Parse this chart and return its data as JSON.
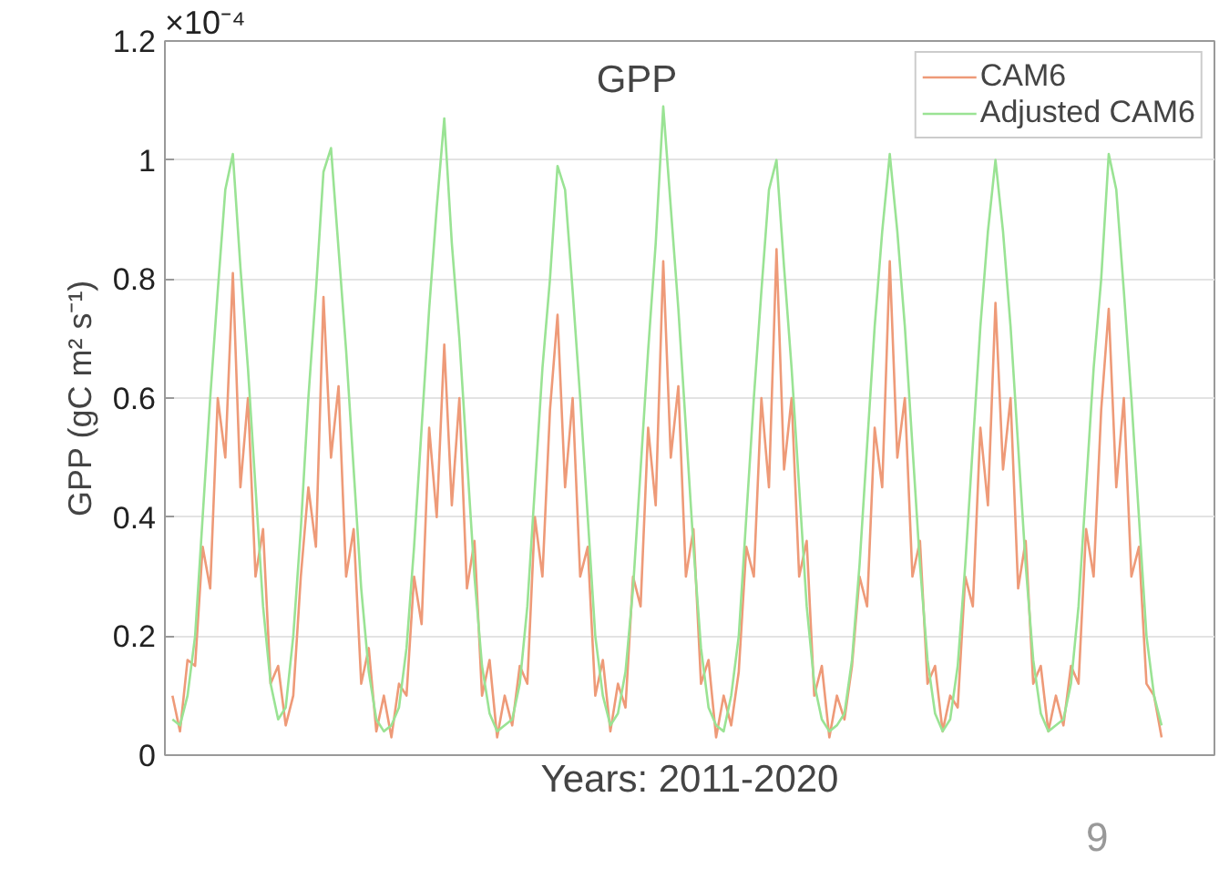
{
  "chart_data": {
    "type": "line",
    "title": "GPP",
    "xlabel": "Years: 2011-2020",
    "ylabel": "GPP (gC m² s⁻¹)",
    "annotations": [
      "×10⁻⁴",
      "9"
    ],
    "categories": [
      null,
      null,
      null,
      null,
      null,
      null,
      null,
      null,
      null,
      null,
      null,
      null,
      null,
      null,
      null,
      null,
      null,
      null,
      null,
      null,
      null,
      null,
      null,
      null,
      null,
      null,
      null,
      null,
      null,
      null,
      null,
      null,
      null,
      null,
      null,
      null,
      null,
      null,
      null,
      null,
      null,
      null,
      null,
      null,
      null,
      null,
      null,
      null,
      null,
      null,
      null,
      null,
      null,
      null,
      null,
      null,
      null,
      null,
      null,
      null,
      null,
      null,
      null,
      null,
      null,
      null,
      null,
      null,
      null,
      null,
      null,
      null,
      null,
      null,
      null,
      null,
      null,
      null,
      null,
      null,
      null,
      null,
      null,
      null,
      null,
      null,
      null,
      null,
      null,
      null,
      null,
      null,
      null,
      null,
      null,
      null,
      null,
      null,
      null,
      null,
      null,
      null,
      null,
      null,
      null,
      null,
      null,
      null,
      null,
      null,
      null,
      null,
      null,
      null,
      null,
      null,
      null,
      null,
      null,
      null,
      null,
      null,
      null,
      null,
      null,
      null,
      null,
      null,
      null,
      null,
      null,
      null
    ],
    "series": [
      {
        "name": "CAM6",
        "color": "#ee9a78",
        "values": [
          0.1,
          0.04,
          0.16,
          0.15,
          0.35,
          0.28,
          0.6,
          0.5,
          0.81,
          0.45,
          0.6,
          0.3,
          0.38,
          0.12,
          0.15,
          0.05,
          0.1,
          0.3,
          0.45,
          0.35,
          0.77,
          0.5,
          0.62,
          0.3,
          0.38,
          0.12,
          0.18,
          0.04,
          0.1,
          0.03,
          0.12,
          0.1,
          0.3,
          0.22,
          0.55,
          0.4,
          0.69,
          0.42,
          0.6,
          0.28,
          0.36,
          0.1,
          0.16,
          0.03,
          0.1,
          0.05,
          0.15,
          0.12,
          0.4,
          0.3,
          0.58,
          0.74,
          0.45,
          0.6,
          0.3,
          0.35,
          0.1,
          0.16,
          0.04,
          0.12,
          0.08,
          0.3,
          0.25,
          0.55,
          0.42,
          0.83,
          0.5,
          0.62,
          0.3,
          0.38,
          0.12,
          0.16,
          0.03,
          0.1,
          0.05,
          0.14,
          0.35,
          0.3,
          0.6,
          0.45,
          0.85,
          0.48,
          0.6,
          0.3,
          0.36,
          0.1,
          0.15,
          0.03,
          0.1,
          0.06,
          0.15,
          0.3,
          0.25,
          0.55,
          0.45,
          0.83,
          0.5,
          0.6,
          0.3,
          0.36,
          0.12,
          0.15,
          0.04,
          0.1,
          0.08,
          0.3,
          0.25,
          0.55,
          0.42,
          0.76,
          0.48,
          0.6,
          0.28,
          0.36,
          0.12,
          0.15,
          0.04,
          0.1,
          0.05,
          0.15,
          0.12,
          0.38,
          0.3,
          0.58,
          0.75,
          0.45,
          0.6,
          0.3,
          0.35,
          0.12,
          0.1,
          0.03
        ]
      },
      {
        "name": "Adjusted CAM6",
        "color": "#9ae394",
        "values": [
          0.06,
          0.05,
          0.1,
          0.2,
          0.4,
          0.6,
          0.78,
          0.95,
          1.01,
          0.82,
          0.65,
          0.45,
          0.25,
          0.12,
          0.06,
          0.08,
          0.2,
          0.38,
          0.6,
          0.78,
          0.98,
          1.02,
          0.85,
          0.68,
          0.48,
          0.28,
          0.14,
          0.06,
          0.04,
          0.05,
          0.08,
          0.18,
          0.35,
          0.55,
          0.75,
          0.92,
          1.07,
          0.86,
          0.7,
          0.5,
          0.3,
          0.15,
          0.07,
          0.04,
          0.05,
          0.06,
          0.12,
          0.25,
          0.45,
          0.65,
          0.8,
          0.99,
          0.95,
          0.78,
          0.6,
          0.4,
          0.2,
          0.1,
          0.05,
          0.07,
          0.14,
          0.28,
          0.48,
          0.68,
          0.86,
          1.09,
          0.92,
          0.75,
          0.55,
          0.35,
          0.18,
          0.08,
          0.05,
          0.04,
          0.1,
          0.2,
          0.4,
          0.6,
          0.78,
          0.95,
          1.0,
          0.82,
          0.65,
          0.45,
          0.25,
          0.12,
          0.06,
          0.04,
          0.05,
          0.07,
          0.16,
          0.32,
          0.52,
          0.72,
          0.88,
          1.01,
          0.88,
          0.72,
          0.52,
          0.32,
          0.16,
          0.07,
          0.04,
          0.06,
          0.15,
          0.32,
          0.52,
          0.72,
          0.88,
          1.0,
          0.88,
          0.72,
          0.52,
          0.32,
          0.16,
          0.07,
          0.04,
          0.05,
          0.06,
          0.12,
          0.25,
          0.45,
          0.65,
          0.8,
          1.01,
          0.95,
          0.78,
          0.6,
          0.4,
          0.2,
          0.1,
          0.05
        ]
      }
    ],
    "ylim": [
      0,
      1.2
    ],
    "yticks": [
      0,
      0.2,
      0.4,
      0.6,
      0.8,
      1,
      1.2
    ],
    "grid": "y",
    "legend": "top right",
    "line_style": "solid"
  }
}
